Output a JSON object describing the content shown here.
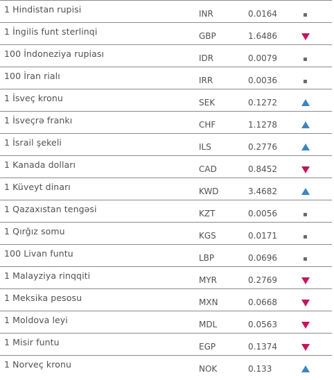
{
  "colors": {
    "up": "#3a86c0",
    "down": "#c2185b",
    "flat": "#6b6b6b",
    "divider": "#8a8a8a",
    "text": "#505050"
  },
  "rows": [
    {
      "name": "1 Hindistan rupisi",
      "code": "INR",
      "value": "0.0164",
      "trend": "flat"
    },
    {
      "name": "1 İngilis funt sterlinqi",
      "code": "GBP",
      "value": "1.6486",
      "trend": "down"
    },
    {
      "name": "100 İndoneziya rupiası",
      "code": "IDR",
      "value": "0.0079",
      "trend": "flat"
    },
    {
      "name": "100 İran rialı",
      "code": "IRR",
      "value": "0.0036",
      "trend": "flat"
    },
    {
      "name": "1 İsveç kronu",
      "code": "SEK",
      "value": "0.1272",
      "trend": "up"
    },
    {
      "name": "1 İsveçrə frankı",
      "code": "CHF",
      "value": "1.1278",
      "trend": "up"
    },
    {
      "name": "1 İsrail şekeli",
      "code": "ILS",
      "value": "0.2776",
      "trend": "up"
    },
    {
      "name": "1 Kanada dolları",
      "code": "CAD",
      "value": "0.8452",
      "trend": "down"
    },
    {
      "name": "1 Küveyt dinarı",
      "code": "KWD",
      "value": "3.4682",
      "trend": "up"
    },
    {
      "name": "1 Qazaxıstan tengəsi",
      "code": "KZT",
      "value": "0.0056",
      "trend": "flat"
    },
    {
      "name": "1 Qırğız somu",
      "code": "KGS",
      "value": "0.0171",
      "trend": "flat"
    },
    {
      "name": "100 Livan funtu",
      "code": "LBP",
      "value": "0.0696",
      "trend": "flat"
    },
    {
      "name": "1 Malayziya rinqqiti",
      "code": "MYR",
      "value": "0.2769",
      "trend": "down"
    },
    {
      "name": "1 Meksika pesosu",
      "code": "MXN",
      "value": "0.0668",
      "trend": "down"
    },
    {
      "name": "1 Moldova leyi",
      "code": "MDL",
      "value": "0.0563",
      "trend": "down"
    },
    {
      "name": "1 Misir funtu",
      "code": "EGP",
      "value": "0.1374",
      "trend": "down"
    },
    {
      "name": "1 Norveç kronu",
      "code": "NOK",
      "value": "0.133",
      "trend": "up"
    }
  ]
}
